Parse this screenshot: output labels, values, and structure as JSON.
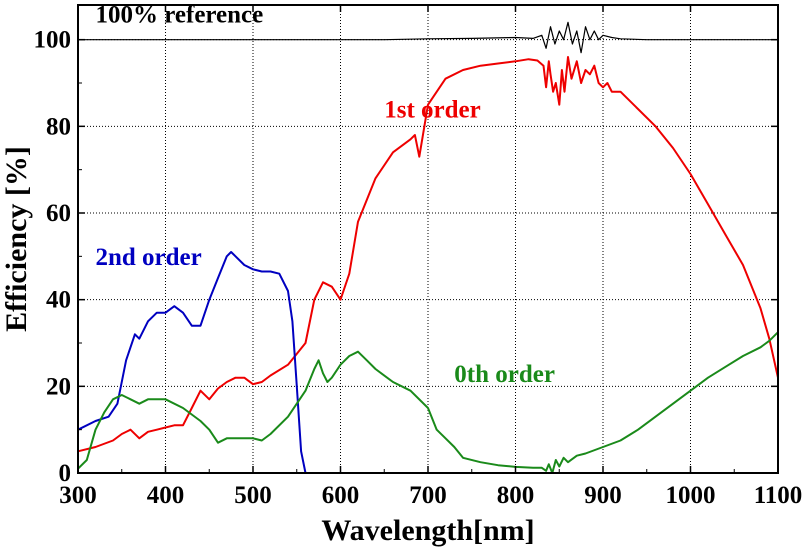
{
  "chart_data": {
    "type": "line",
    "title": "",
    "xlabel": "Wavelength[nm]",
    "ylabel": "Efficiency [%]",
    "xlim": [
      300,
      1100
    ],
    "ylim": [
      0,
      108
    ],
    "xticks": [
      300,
      400,
      500,
      600,
      700,
      800,
      900,
      1000,
      1100
    ],
    "yticks": [
      0,
      20,
      40,
      60,
      80,
      100
    ],
    "grid": true,
    "legend": "none",
    "series": [
      {
        "name": "100% reference",
        "color": "#000000",
        "x": [
          300,
          350,
          400,
          450,
          500,
          550,
          600,
          650,
          700,
          750,
          800,
          820,
          830,
          835,
          840,
          845,
          850,
          855,
          860,
          865,
          870,
          875,
          880,
          885,
          890,
          895,
          900,
          910,
          920,
          950,
          1000,
          1050,
          1100
        ],
        "values": [
          100,
          100,
          100,
          100,
          100,
          100,
          100,
          100,
          100.2,
          100.3,
          100.5,
          100.3,
          101,
          98,
          103,
          99,
          102,
          100,
          104,
          99,
          102,
          97,
          103,
          100,
          102,
          100,
          101,
          100.5,
          100.2,
          100,
          100,
          100,
          100
        ]
      },
      {
        "name": "1st order",
        "color": "#ee0000",
        "x": [
          300,
          320,
          340,
          350,
          360,
          370,
          380,
          390,
          400,
          410,
          420,
          430,
          440,
          450,
          460,
          470,
          480,
          490,
          500,
          510,
          520,
          540,
          560,
          570,
          580,
          590,
          600,
          610,
          620,
          640,
          660,
          680,
          685,
          690,
          700,
          720,
          740,
          760,
          780,
          800,
          815,
          825,
          832,
          835,
          838,
          840,
          843,
          846,
          850,
          853,
          856,
          860,
          864,
          870,
          875,
          880,
          885,
          890,
          895,
          900,
          905,
          910,
          920,
          940,
          960,
          980,
          1000,
          1020,
          1040,
          1060,
          1080,
          1090,
          1100
        ],
        "values": [
          5,
          6,
          7.5,
          9,
          10,
          8,
          9.5,
          10,
          10.5,
          11,
          11,
          15,
          19,
          17,
          19.5,
          21,
          22,
          22,
          20.5,
          21,
          22.5,
          25,
          30,
          40,
          44,
          43,
          40,
          46,
          58,
          68,
          74,
          77,
          78,
          73,
          85,
          91,
          93,
          94,
          94.5,
          95,
          95.5,
          95.2,
          94,
          89,
          95,
          92,
          88,
          90,
          85,
          93,
          88,
          96,
          91,
          95,
          90,
          93,
          92,
          94,
          90,
          89,
          90,
          88,
          88,
          84,
          80,
          75,
          69,
          62,
          55,
          48,
          38,
          31,
          22
        ]
      },
      {
        "name": "2nd order",
        "color": "#0000c0",
        "x": [
          300,
          320,
          335,
          345,
          355,
          365,
          370,
          380,
          390,
          400,
          410,
          420,
          430,
          440,
          450,
          460,
          470,
          475,
          480,
          490,
          500,
          510,
          520,
          530,
          540,
          545,
          550,
          555,
          560,
          570,
          580,
          600
        ],
        "values": [
          10,
          12,
          13,
          16,
          26,
          32,
          31,
          35,
          37,
          37,
          38.5,
          37,
          34,
          34,
          40,
          45,
          50,
          51,
          50,
          48,
          47,
          46.5,
          46.5,
          46,
          42,
          35,
          20,
          5,
          0,
          0,
          0,
          0
        ]
      },
      {
        "name": "0th order",
        "color": "#1a8a1a",
        "x": [
          300,
          310,
          320,
          330,
          340,
          350,
          360,
          370,
          380,
          400,
          420,
          440,
          450,
          460,
          470,
          480,
          490,
          500,
          510,
          520,
          540,
          560,
          570,
          575,
          580,
          585,
          590,
          600,
          610,
          620,
          630,
          640,
          660,
          680,
          700,
          710,
          720,
          730,
          740,
          760,
          780,
          800,
          820,
          830,
          835,
          838,
          842,
          846,
          850,
          855,
          860,
          870,
          880,
          900,
          920,
          940,
          960,
          980,
          1000,
          1020,
          1040,
          1060,
          1080,
          1090,
          1100
        ],
        "values": [
          1,
          3,
          10,
          14,
          17,
          18,
          17,
          16,
          17,
          17,
          15,
          12,
          10,
          7,
          8,
          8,
          8,
          8,
          7.5,
          9,
          13,
          19,
          24,
          26,
          23,
          21,
          22,
          25,
          27,
          28,
          26,
          24,
          21,
          19,
          15,
          10,
          8,
          6,
          3.5,
          2.5,
          1.8,
          1.4,
          1.2,
          1.2,
          0.5,
          2,
          0,
          3,
          1.5,
          3.5,
          2.5,
          4,
          4.5,
          6,
          7.5,
          10,
          13,
          16,
          19,
          22,
          24.5,
          27,
          29,
          30.5,
          32.5
        ]
      }
    ],
    "annotations": [
      {
        "text": "100% reference",
        "color": "#000000",
        "x": 320,
        "y": 104
      },
      {
        "text": "1st order",
        "color": "#ee0000",
        "x": 650,
        "y": 82
      },
      {
        "text": "2nd order",
        "color": "#0000c0",
        "x": 320,
        "y": 48
      },
      {
        "text": "0th order",
        "color": "#1a8a1a",
        "x": 730,
        "y": 21
      }
    ]
  }
}
